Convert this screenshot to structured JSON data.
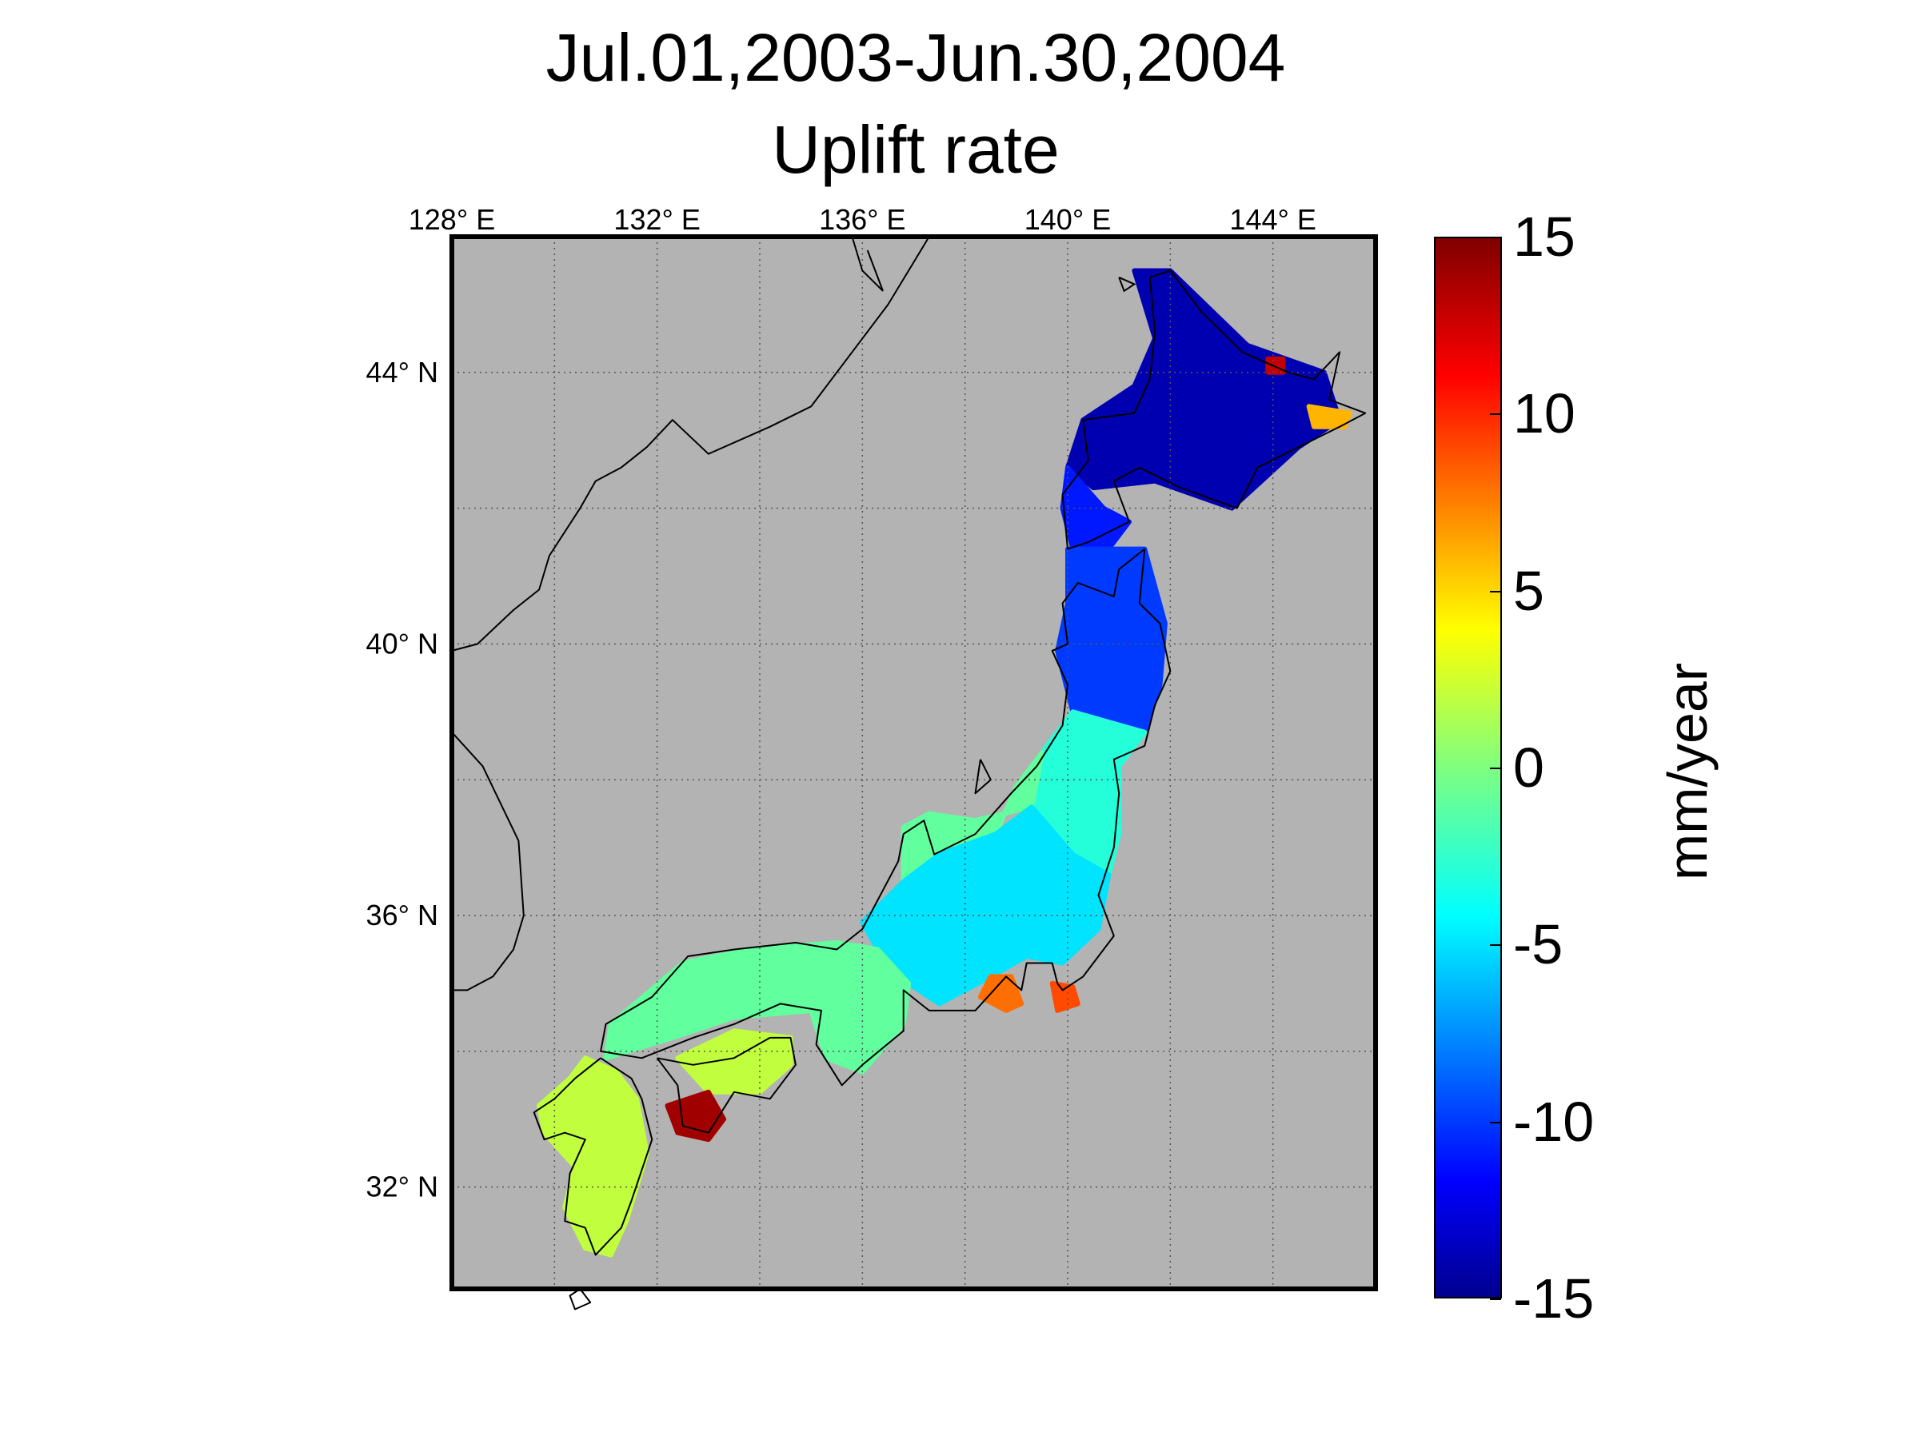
{
  "title": {
    "line1": "Jul.01,2003-Jun.30,2004",
    "line2": "Uplift rate"
  },
  "map": {
    "longitude_labels": [
      {
        "value": 128,
        "text": "128° E"
      },
      {
        "value": 132,
        "text": "132° E"
      },
      {
        "value": 136,
        "text": "136° E"
      },
      {
        "value": 140,
        "text": "140° E"
      },
      {
        "value": 144,
        "text": "144° E"
      }
    ],
    "latitude_labels": [
      {
        "value": 44,
        "text": "44° N"
      },
      {
        "value": 40,
        "text": "40° N"
      },
      {
        "value": 36,
        "text": "36° N"
      },
      {
        "value": 32,
        "text": "32° N"
      }
    ],
    "lon_range": [
      128,
      146
    ],
    "lat_range": [
      30.5,
      46
    ],
    "background_color": "#b3b3b3",
    "grid": true
  },
  "colorbar": {
    "unit_label": "mm/year",
    "min": -15,
    "max": 15,
    "ticks": [
      {
        "value": 15,
        "text": "15"
      },
      {
        "value": 10,
        "text": "10"
      },
      {
        "value": 5,
        "text": "5"
      },
      {
        "value": 0,
        "text": "0"
      },
      {
        "value": -5,
        "text": "-5"
      },
      {
        "value": -10,
        "text": "-10"
      },
      {
        "value": -15,
        "text": "-15"
      }
    ],
    "colormap": "jet",
    "colors": [
      "#00008f",
      "#0000ff",
      "#00ffff",
      "#7fff7f",
      "#ffff00",
      "#ff0000",
      "#800000"
    ]
  },
  "uplift_regions": [
    {
      "name": "hokkaido",
      "value": -14,
      "poly": [
        [
          141.3,
          45.5
        ],
        [
          142.0,
          45.5
        ],
        [
          143.5,
          44.4
        ],
        [
          145.0,
          44.0
        ],
        [
          145.3,
          43.3
        ],
        [
          144.5,
          42.9
        ],
        [
          143.2,
          42.0
        ],
        [
          141.7,
          42.4
        ],
        [
          140.5,
          42.3
        ],
        [
          140.0,
          42.6
        ],
        [
          140.3,
          43.3
        ],
        [
          141.3,
          43.8
        ],
        [
          141.7,
          44.5
        ]
      ]
    },
    {
      "name": "oshima",
      "value": -11,
      "poly": [
        [
          140.0,
          42.6
        ],
        [
          140.7,
          42.0
        ],
        [
          141.2,
          41.8
        ],
        [
          140.7,
          41.3
        ],
        [
          140.1,
          41.4
        ],
        [
          139.9,
          42.0
        ]
      ]
    },
    {
      "name": "tohoku-north",
      "value": -10,
      "poly": [
        [
          140.0,
          41.4
        ],
        [
          141.5,
          41.4
        ],
        [
          141.9,
          40.3
        ],
        [
          141.8,
          39.4
        ],
        [
          141.5,
          38.7
        ],
        [
          140.9,
          38.6
        ],
        [
          140.1,
          39.0
        ],
        [
          139.8,
          39.9
        ],
        [
          140.0,
          40.6
        ]
      ]
    },
    {
      "name": "tohoku-south",
      "value": -3,
      "poly": [
        [
          140.1,
          39.0
        ],
        [
          141.5,
          38.7
        ],
        [
          141.0,
          38.2
        ],
        [
          141.0,
          37.2
        ],
        [
          140.8,
          36.6
        ],
        [
          140.1,
          36.9
        ],
        [
          139.3,
          37.6
        ],
        [
          139.5,
          38.4
        ]
      ]
    },
    {
      "name": "hokuriku",
      "value": -1,
      "poly": [
        [
          139.5,
          38.4
        ],
        [
          139.3,
          37.6
        ],
        [
          138.2,
          37.4
        ],
        [
          137.3,
          37.5
        ],
        [
          136.8,
          37.3
        ],
        [
          136.8,
          36.5
        ],
        [
          137.5,
          36.9
        ],
        [
          138.6,
          37.2
        ],
        [
          139.0,
          37.9
        ]
      ]
    },
    {
      "name": "kanto-chubu",
      "value": -5,
      "poly": [
        [
          136.8,
          36.5
        ],
        [
          137.5,
          36.9
        ],
        [
          138.6,
          37.2
        ],
        [
          139.3,
          37.6
        ],
        [
          140.1,
          36.9
        ],
        [
          140.8,
          36.6
        ],
        [
          140.6,
          35.8
        ],
        [
          139.9,
          35.3
        ],
        [
          139.2,
          35.4
        ],
        [
          138.5,
          35.1
        ],
        [
          137.5,
          34.7
        ],
        [
          136.9,
          35.0
        ],
        [
          136.3,
          35.5
        ],
        [
          136.0,
          35.9
        ]
      ]
    },
    {
      "name": "kinki-chugoku",
      "value": -1,
      "poly": [
        [
          136.3,
          35.5
        ],
        [
          136.9,
          35.0
        ],
        [
          136.8,
          34.4
        ],
        [
          136.0,
          33.7
        ],
        [
          135.3,
          33.9
        ],
        [
          135.0,
          34.6
        ],
        [
          133.5,
          34.5
        ],
        [
          132.3,
          34.2
        ],
        [
          131.0,
          33.9
        ],
        [
          131.1,
          34.4
        ],
        [
          132.5,
          35.3
        ],
        [
          133.8,
          35.5
        ],
        [
          135.5,
          35.6
        ]
      ]
    },
    {
      "name": "izu-shizuoka",
      "value": 8,
      "poly": [
        [
          138.5,
          35.1
        ],
        [
          138.9,
          35.1
        ],
        [
          139.1,
          34.7
        ],
        [
          138.8,
          34.6
        ],
        [
          138.3,
          34.8
        ]
      ]
    },
    {
      "name": "boso",
      "value": 9,
      "poly": [
        [
          139.7,
          35.0
        ],
        [
          140.1,
          34.95
        ],
        [
          140.2,
          34.7
        ],
        [
          139.8,
          34.6
        ]
      ]
    },
    {
      "name": "shikoku-north",
      "value": 2,
      "poly": [
        [
          132.4,
          33.9
        ],
        [
          133.5,
          34.3
        ],
        [
          134.6,
          34.2
        ],
        [
          134.6,
          33.8
        ],
        [
          134.0,
          33.4
        ],
        [
          133.0,
          33.4
        ]
      ]
    },
    {
      "name": "shikoku-south",
      "value": 14,
      "poly": [
        [
          132.2,
          33.2
        ],
        [
          133.0,
          33.4
        ],
        [
          133.3,
          33.0
        ],
        [
          133.0,
          32.7
        ],
        [
          132.4,
          32.8
        ]
      ]
    },
    {
      "name": "kyushu",
      "value": 2,
      "poly": [
        [
          130.6,
          33.9
        ],
        [
          131.2,
          33.7
        ],
        [
          131.6,
          33.3
        ],
        [
          131.8,
          32.5
        ],
        [
          131.4,
          31.5
        ],
        [
          131.1,
          31.0
        ],
        [
          130.6,
          31.1
        ],
        [
          130.2,
          31.7
        ],
        [
          130.4,
          32.3
        ],
        [
          129.8,
          32.8
        ],
        [
          129.7,
          33.2
        ],
        [
          130.3,
          33.6
        ]
      ]
    },
    {
      "name": "nemuro",
      "value": 6,
      "poly": [
        [
          144.7,
          43.5
        ],
        [
          145.5,
          43.4
        ],
        [
          145.4,
          43.2
        ],
        [
          144.8,
          43.2
        ]
      ]
    },
    {
      "name": "abashiri",
      "value": 13,
      "poly": [
        [
          143.9,
          44.2
        ],
        [
          144.2,
          44.2
        ],
        [
          144.2,
          44.0
        ],
        [
          143.9,
          44.0
        ]
      ]
    }
  ],
  "coastline": [
    [
      [
        141.6,
        45.4
      ],
      [
        142.0,
        45.5
      ],
      [
        142.6,
        44.9
      ],
      [
        143.4,
        44.3
      ],
      [
        144.3,
        44.0
      ],
      [
        144.8,
        43.9
      ],
      [
        145.3,
        44.3
      ],
      [
        145.1,
        43.6
      ],
      [
        145.8,
        43.4
      ],
      [
        145.3,
        43.2
      ],
      [
        144.5,
        42.9
      ],
      [
        143.7,
        42.6
      ],
      [
        143.3,
        42.0
      ],
      [
        142.2,
        42.3
      ],
      [
        141.4,
        42.6
      ],
      [
        140.9,
        42.4
      ],
      [
        141.2,
        41.8
      ],
      [
        140.4,
        41.5
      ],
      [
        140.0,
        41.4
      ],
      [
        139.9,
        42.2
      ],
      [
        140.4,
        42.7
      ],
      [
        140.3,
        43.3
      ],
      [
        141.3,
        43.4
      ],
      [
        141.6,
        43.9
      ],
      [
        141.7,
        44.6
      ],
      [
        141.6,
        45.4
      ]
    ],
    [
      [
        141.5,
        41.4
      ],
      [
        141.0,
        41.1
      ],
      [
        140.9,
        40.7
      ],
      [
        140.2,
        40.9
      ],
      [
        139.9,
        40.6
      ],
      [
        140.0,
        40.0
      ],
      [
        139.7,
        39.9
      ],
      [
        140.0,
        39.4
      ],
      [
        139.9,
        38.8
      ],
      [
        139.4,
        38.2
      ],
      [
        138.9,
        37.8
      ],
      [
        138.2,
        37.2
      ],
      [
        137.4,
        36.9
      ],
      [
        137.2,
        37.4
      ],
      [
        136.8,
        37.2
      ],
      [
        136.7,
        36.8
      ],
      [
        136.0,
        35.8
      ],
      [
        135.5,
        35.5
      ],
      [
        134.7,
        35.6
      ],
      [
        133.5,
        35.5
      ],
      [
        132.6,
        35.4
      ],
      [
        131.9,
        34.8
      ],
      [
        131.0,
        34.4
      ],
      [
        130.9,
        34.0
      ],
      [
        131.7,
        33.9
      ],
      [
        132.7,
        34.2
      ],
      [
        133.5,
        34.4
      ],
      [
        134.4,
        34.7
      ],
      [
        135.2,
        34.6
      ],
      [
        135.1,
        34.1
      ],
      [
        135.6,
        33.5
      ],
      [
        136.0,
        33.8
      ],
      [
        136.8,
        34.3
      ],
      [
        136.8,
        34.9
      ],
      [
        137.3,
        34.6
      ],
      [
        138.2,
        34.6
      ],
      [
        138.8,
        35.1
      ],
      [
        139.1,
        34.9
      ],
      [
        139.2,
        35.3
      ],
      [
        139.7,
        35.3
      ],
      [
        139.8,
        35.0
      ],
      [
        139.9,
        34.9
      ],
      [
        140.3,
        35.1
      ],
      [
        140.9,
        35.7
      ],
      [
        140.6,
        36.3
      ],
      [
        140.9,
        37.0
      ],
      [
        141.0,
        37.8
      ],
      [
        140.9,
        38.3
      ],
      [
        141.5,
        38.5
      ],
      [
        141.7,
        39.1
      ],
      [
        142.0,
        39.6
      ],
      [
        141.8,
        40.3
      ],
      [
        141.4,
        40.6
      ],
      [
        141.5,
        41.4
      ]
    ],
    [
      [
        132.0,
        33.9
      ],
      [
        132.7,
        33.8
      ],
      [
        133.5,
        33.9
      ],
      [
        134.2,
        34.2
      ],
      [
        134.6,
        34.2
      ],
      [
        134.7,
        33.8
      ],
      [
        134.2,
        33.3
      ],
      [
        133.5,
        33.4
      ],
      [
        133.0,
        32.8
      ],
      [
        132.5,
        32.9
      ],
      [
        132.4,
        33.5
      ],
      [
        132.0,
        33.9
      ]
    ],
    [
      [
        130.9,
        33.9
      ],
      [
        131.5,
        33.6
      ],
      [
        131.7,
        33.3
      ],
      [
        131.9,
        32.7
      ],
      [
        131.5,
        31.8
      ],
      [
        131.3,
        31.4
      ],
      [
        130.8,
        31.0
      ],
      [
        130.6,
        31.4
      ],
      [
        130.2,
        31.5
      ],
      [
        130.3,
        32.2
      ],
      [
        130.6,
        32.7
      ],
      [
        130.2,
        32.8
      ],
      [
        129.8,
        32.7
      ],
      [
        129.6,
        33.1
      ],
      [
        130.0,
        33.3
      ],
      [
        130.4,
        33.6
      ],
      [
        130.9,
        33.9
      ]
    ],
    [
      [
        130.5,
        30.5
      ],
      [
        130.7,
        30.3
      ],
      [
        130.4,
        30.2
      ],
      [
        130.3,
        30.4
      ],
      [
        130.5,
        30.5
      ]
    ],
    [
      [
        138.3,
        38.3
      ],
      [
        138.5,
        38.0
      ],
      [
        138.2,
        37.8
      ],
      [
        138.3,
        38.3
      ]
    ]
  ],
  "mainland_coast": [
    [
      [
        137.3,
        46.0
      ],
      [
        136.5,
        45.0
      ],
      [
        135.5,
        44.0
      ],
      [
        135.0,
        43.5
      ],
      [
        134.2,
        43.2
      ],
      [
        133.0,
        42.8
      ],
      [
        132.3,
        43.3
      ],
      [
        131.8,
        42.9
      ],
      [
        131.3,
        42.6
      ],
      [
        130.8,
        42.4
      ],
      [
        130.5,
        42.0
      ],
      [
        129.9,
        41.3
      ],
      [
        129.7,
        40.8
      ],
      [
        129.2,
        40.5
      ],
      [
        128.5,
        40.0
      ],
      [
        128.0,
        39.9
      ]
    ],
    [
      [
        128.0,
        38.7
      ],
      [
        128.6,
        38.2
      ],
      [
        129.3,
        37.1
      ],
      [
        129.4,
        36.0
      ],
      [
        129.2,
        35.5
      ],
      [
        128.8,
        35.1
      ],
      [
        128.3,
        34.9
      ],
      [
        128.0,
        34.9
      ]
    ]
  ],
  "sakhalin_tip": [
    [
      [
        135.8,
        46.0
      ],
      [
        136.0,
        45.5
      ],
      [
        136.4,
        45.2
      ],
      [
        136.1,
        45.8
      ]
    ]
  ],
  "rebun_islands": [
    [
      [
        141.0,
        45.4
      ],
      [
        141.3,
        45.3
      ],
      [
        141.1,
        45.2
      ],
      [
        141.0,
        45.4
      ]
    ]
  ]
}
